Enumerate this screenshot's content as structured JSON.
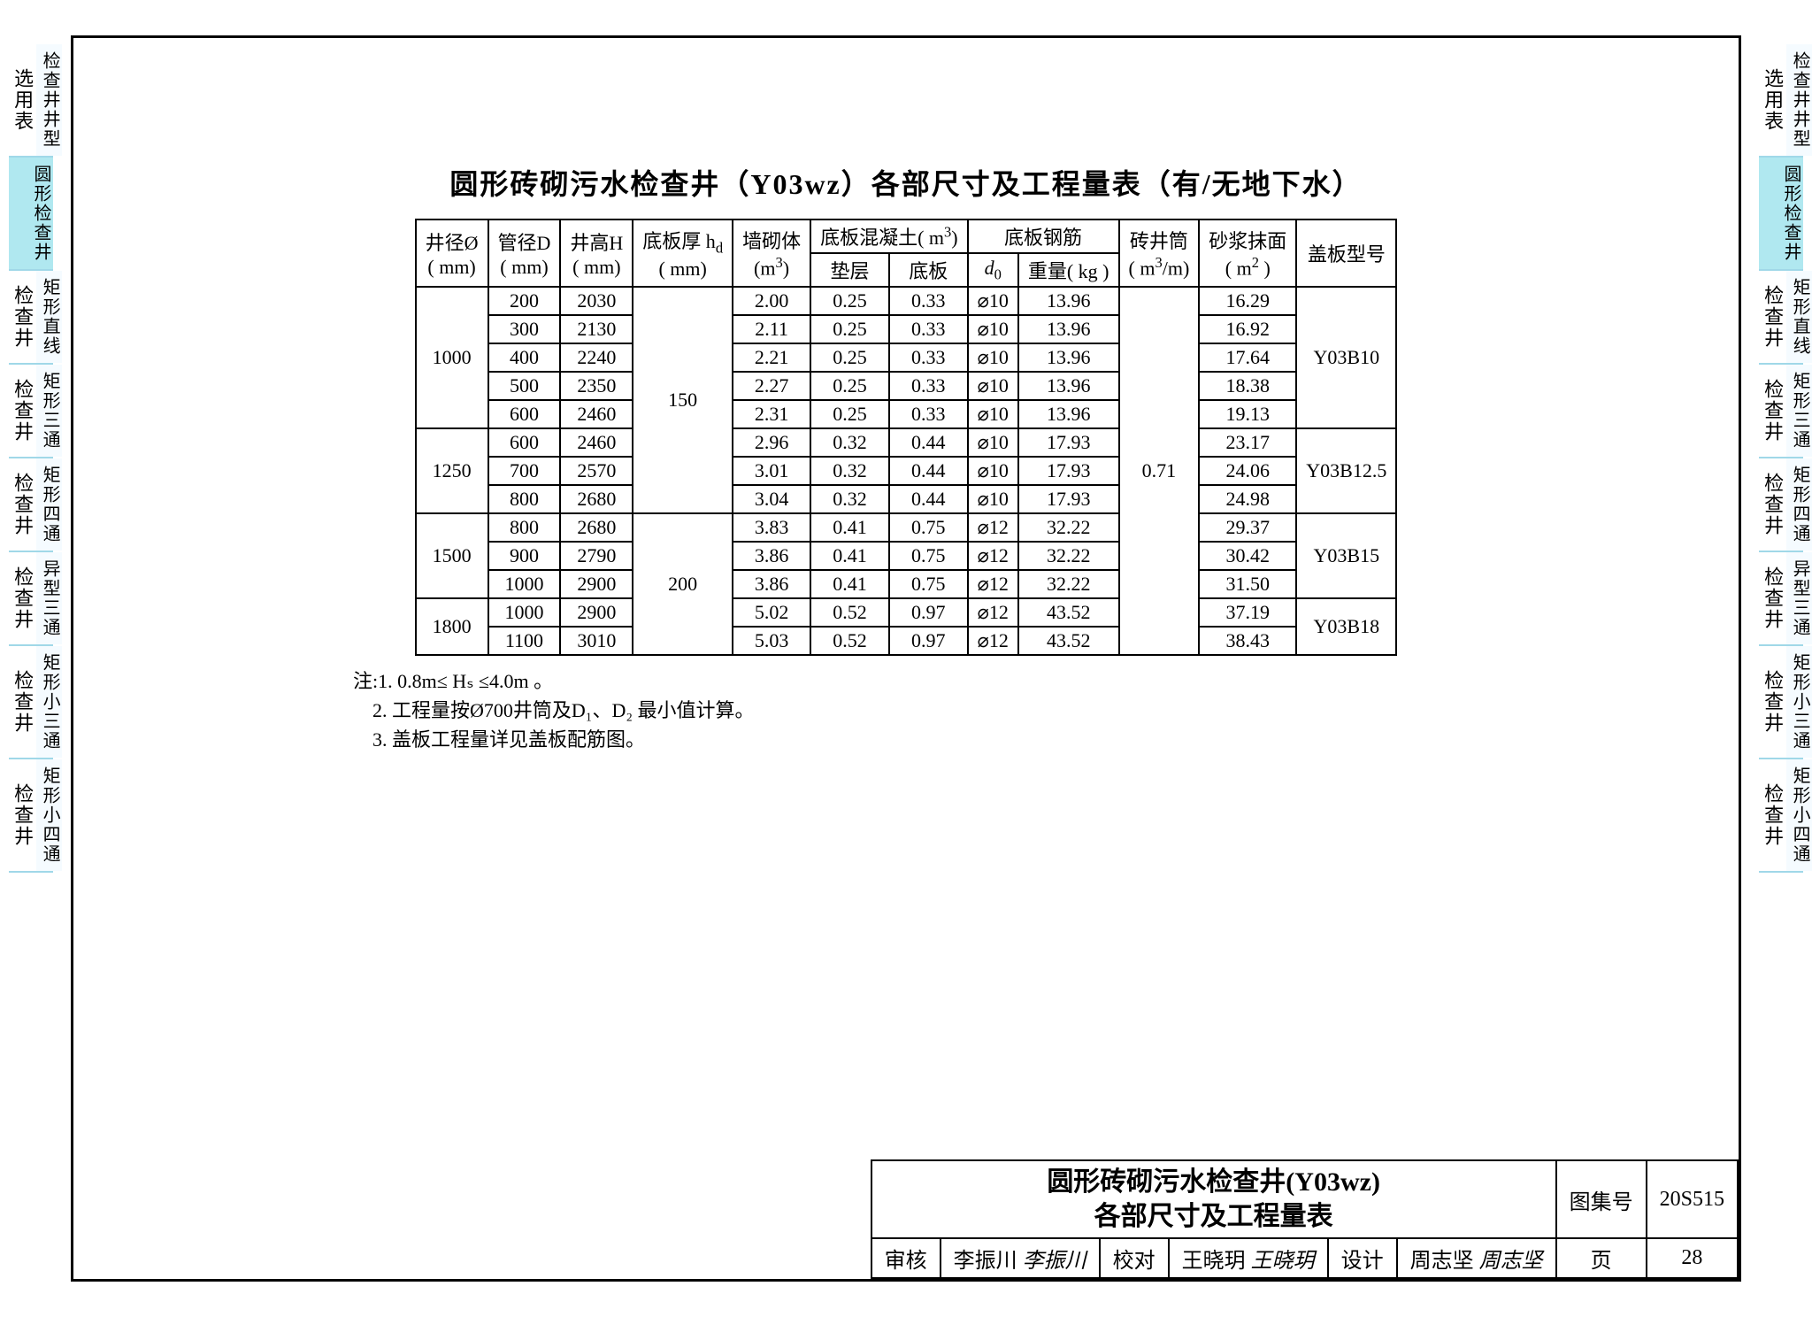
{
  "sideTabs": {
    "group1": {
      "top": "选用表",
      "sub": "检查井井型"
    },
    "group2": {
      "sub": "圆形检查井"
    },
    "group3": {
      "top": "检查井",
      "sub": "矩形直线"
    },
    "group4": {
      "top": "检查井",
      "sub": "矩形三通"
    },
    "group5": {
      "top": "检查井",
      "sub": "矩形四通"
    },
    "group6": {
      "top": "检查井",
      "sub": "异型三通"
    },
    "group7": {
      "top": "检查井",
      "sub": "矩形小三通"
    },
    "group8": {
      "top": "检查井",
      "sub": "矩形小四通"
    }
  },
  "title": "圆形砖砌污水检查井（Y03wz）各部尺寸及工程量表（有/无地下水）",
  "headers": {
    "c1a": "井径Ø",
    "c1b": "( mm)",
    "c2a": "管径D",
    "c2b": "( mm)",
    "c3a": "井高H",
    "c3b": "( mm)",
    "c4a": "底板厚 h",
    "c4sub": "d",
    "c4b": "( mm)",
    "c5a": "墙砌体",
    "c5b": "(m",
    "c5sup": "3",
    "c5c": ")",
    "c6": "底板混凝土( m",
    "c6sup": "3",
    "c6c": ")",
    "c6_1": "垫层",
    "c6_2": "底板",
    "c7": "底板钢筋",
    "c7_1": "d",
    "c7_1sub": "0",
    "c7_2": "重量( kg )",
    "c8a": "砖井筒",
    "c8b": "( m",
    "c8sup": "3",
    "c8c": "/m)",
    "c9a": "砂浆抹面",
    "c9b": "( m",
    "c9sup": "2",
    "c9c": " )",
    "c10": "盖板型号"
  },
  "rows": [
    {
      "dia": "1000",
      "D": "200",
      "H": "2030",
      "hd": "150",
      "wall": "2.00",
      "pad": "0.25",
      "base": "0.33",
      "d0": "⌀10",
      "wt": "13.96",
      "ring": "0.71",
      "mortar": "16.29",
      "cover": "Y03B10"
    },
    {
      "dia": "",
      "D": "300",
      "H": "2130",
      "hd": "",
      "wall": "2.11",
      "pad": "0.25",
      "base": "0.33",
      "d0": "⌀10",
      "wt": "13.96",
      "ring": "",
      "mortar": "16.92",
      "cover": ""
    },
    {
      "dia": "",
      "D": "400",
      "H": "2240",
      "hd": "",
      "wall": "2.21",
      "pad": "0.25",
      "base": "0.33",
      "d0": "⌀10",
      "wt": "13.96",
      "ring": "",
      "mortar": "17.64",
      "cover": ""
    },
    {
      "dia": "",
      "D": "500",
      "H": "2350",
      "hd": "",
      "wall": "2.27",
      "pad": "0.25",
      "base": "0.33",
      "d0": "⌀10",
      "wt": "13.96",
      "ring": "",
      "mortar": "18.38",
      "cover": ""
    },
    {
      "dia": "",
      "D": "600",
      "H": "2460",
      "hd": "",
      "wall": "2.31",
      "pad": "0.25",
      "base": "0.33",
      "d0": "⌀10",
      "wt": "13.96",
      "ring": "",
      "mortar": "19.13",
      "cover": ""
    },
    {
      "dia": "1250",
      "D": "600",
      "H": "2460",
      "hd": "",
      "wall": "2.96",
      "pad": "0.32",
      "base": "0.44",
      "d0": "⌀10",
      "wt": "17.93",
      "ring": "",
      "mortar": "23.17",
      "cover": "Y03B12.5"
    },
    {
      "dia": "",
      "D": "700",
      "H": "2570",
      "hd": "",
      "wall": "3.01",
      "pad": "0.32",
      "base": "0.44",
      "d0": "⌀10",
      "wt": "17.93",
      "ring": "",
      "mortar": "24.06",
      "cover": ""
    },
    {
      "dia": "",
      "D": "800",
      "H": "2680",
      "hd": "",
      "wall": "3.04",
      "pad": "0.32",
      "base": "0.44",
      "d0": "⌀10",
      "wt": "17.93",
      "ring": "",
      "mortar": "24.98",
      "cover": ""
    },
    {
      "dia": "1500",
      "D": "800",
      "H": "2680",
      "hd": "200",
      "wall": "3.83",
      "pad": "0.41",
      "base": "0.75",
      "d0": "⌀12",
      "wt": "32.22",
      "ring": "",
      "mortar": "29.37",
      "cover": "Y03B15"
    },
    {
      "dia": "",
      "D": "900",
      "H": "2790",
      "hd": "",
      "wall": "3.86",
      "pad": "0.41",
      "base": "0.75",
      "d0": "⌀12",
      "wt": "32.22",
      "ring": "",
      "mortar": "30.42",
      "cover": ""
    },
    {
      "dia": "",
      "D": "1000",
      "H": "2900",
      "hd": "",
      "wall": "3.86",
      "pad": "0.41",
      "base": "0.75",
      "d0": "⌀12",
      "wt": "32.22",
      "ring": "",
      "mortar": "31.50",
      "cover": ""
    },
    {
      "dia": "1800",
      "D": "1000",
      "H": "2900",
      "hd": "",
      "wall": "5.02",
      "pad": "0.52",
      "base": "0.97",
      "d0": "⌀12",
      "wt": "43.52",
      "ring": "",
      "mortar": "37.19",
      "cover": "Y03B18"
    },
    {
      "dia": "",
      "D": "1100",
      "H": "3010",
      "hd": "",
      "wall": "5.03",
      "pad": "0.52",
      "base": "0.97",
      "d0": "⌀12",
      "wt": "43.52",
      "ring": "",
      "mortar": "38.43",
      "cover": ""
    }
  ],
  "diaSpans": [
    5,
    0,
    0,
    0,
    0,
    3,
    0,
    0,
    3,
    0,
    0,
    2,
    0
  ],
  "hdSpans": [
    8,
    0,
    0,
    0,
    0,
    0,
    0,
    0,
    5,
    0,
    0,
    0,
    0
  ],
  "ringSpans": [
    13,
    0,
    0,
    0,
    0,
    0,
    0,
    0,
    0,
    0,
    0,
    0,
    0
  ],
  "coverSpans": [
    5,
    0,
    0,
    0,
    0,
    3,
    0,
    0,
    3,
    0,
    0,
    2,
    0
  ],
  "notes": {
    "prefix": "注:",
    "n1": "1.  0.8m≤ Hₛ ≤4.0m 。",
    "n2": "2.  工程量按Ø700井筒及D₁、D₂ 最小值计算。",
    "n3": "3.  盖板工程量详见盖板配筋图。"
  },
  "titleblock": {
    "line1": "圆形砖砌污水检查井(Y03wz)",
    "line2": "各部尺寸及工程量表",
    "setLabel": "图集号",
    "setNo": "20S515",
    "audit": "审核",
    "auditName": "李振川",
    "auditSig": "李振川",
    "check": "校对",
    "checkName": "王晓玥",
    "checkSig": "王晓玥",
    "design": "设计",
    "designName": "周志坚",
    "designSig": "周志坚",
    "pageLabel": "页",
    "pageNo": "28"
  }
}
